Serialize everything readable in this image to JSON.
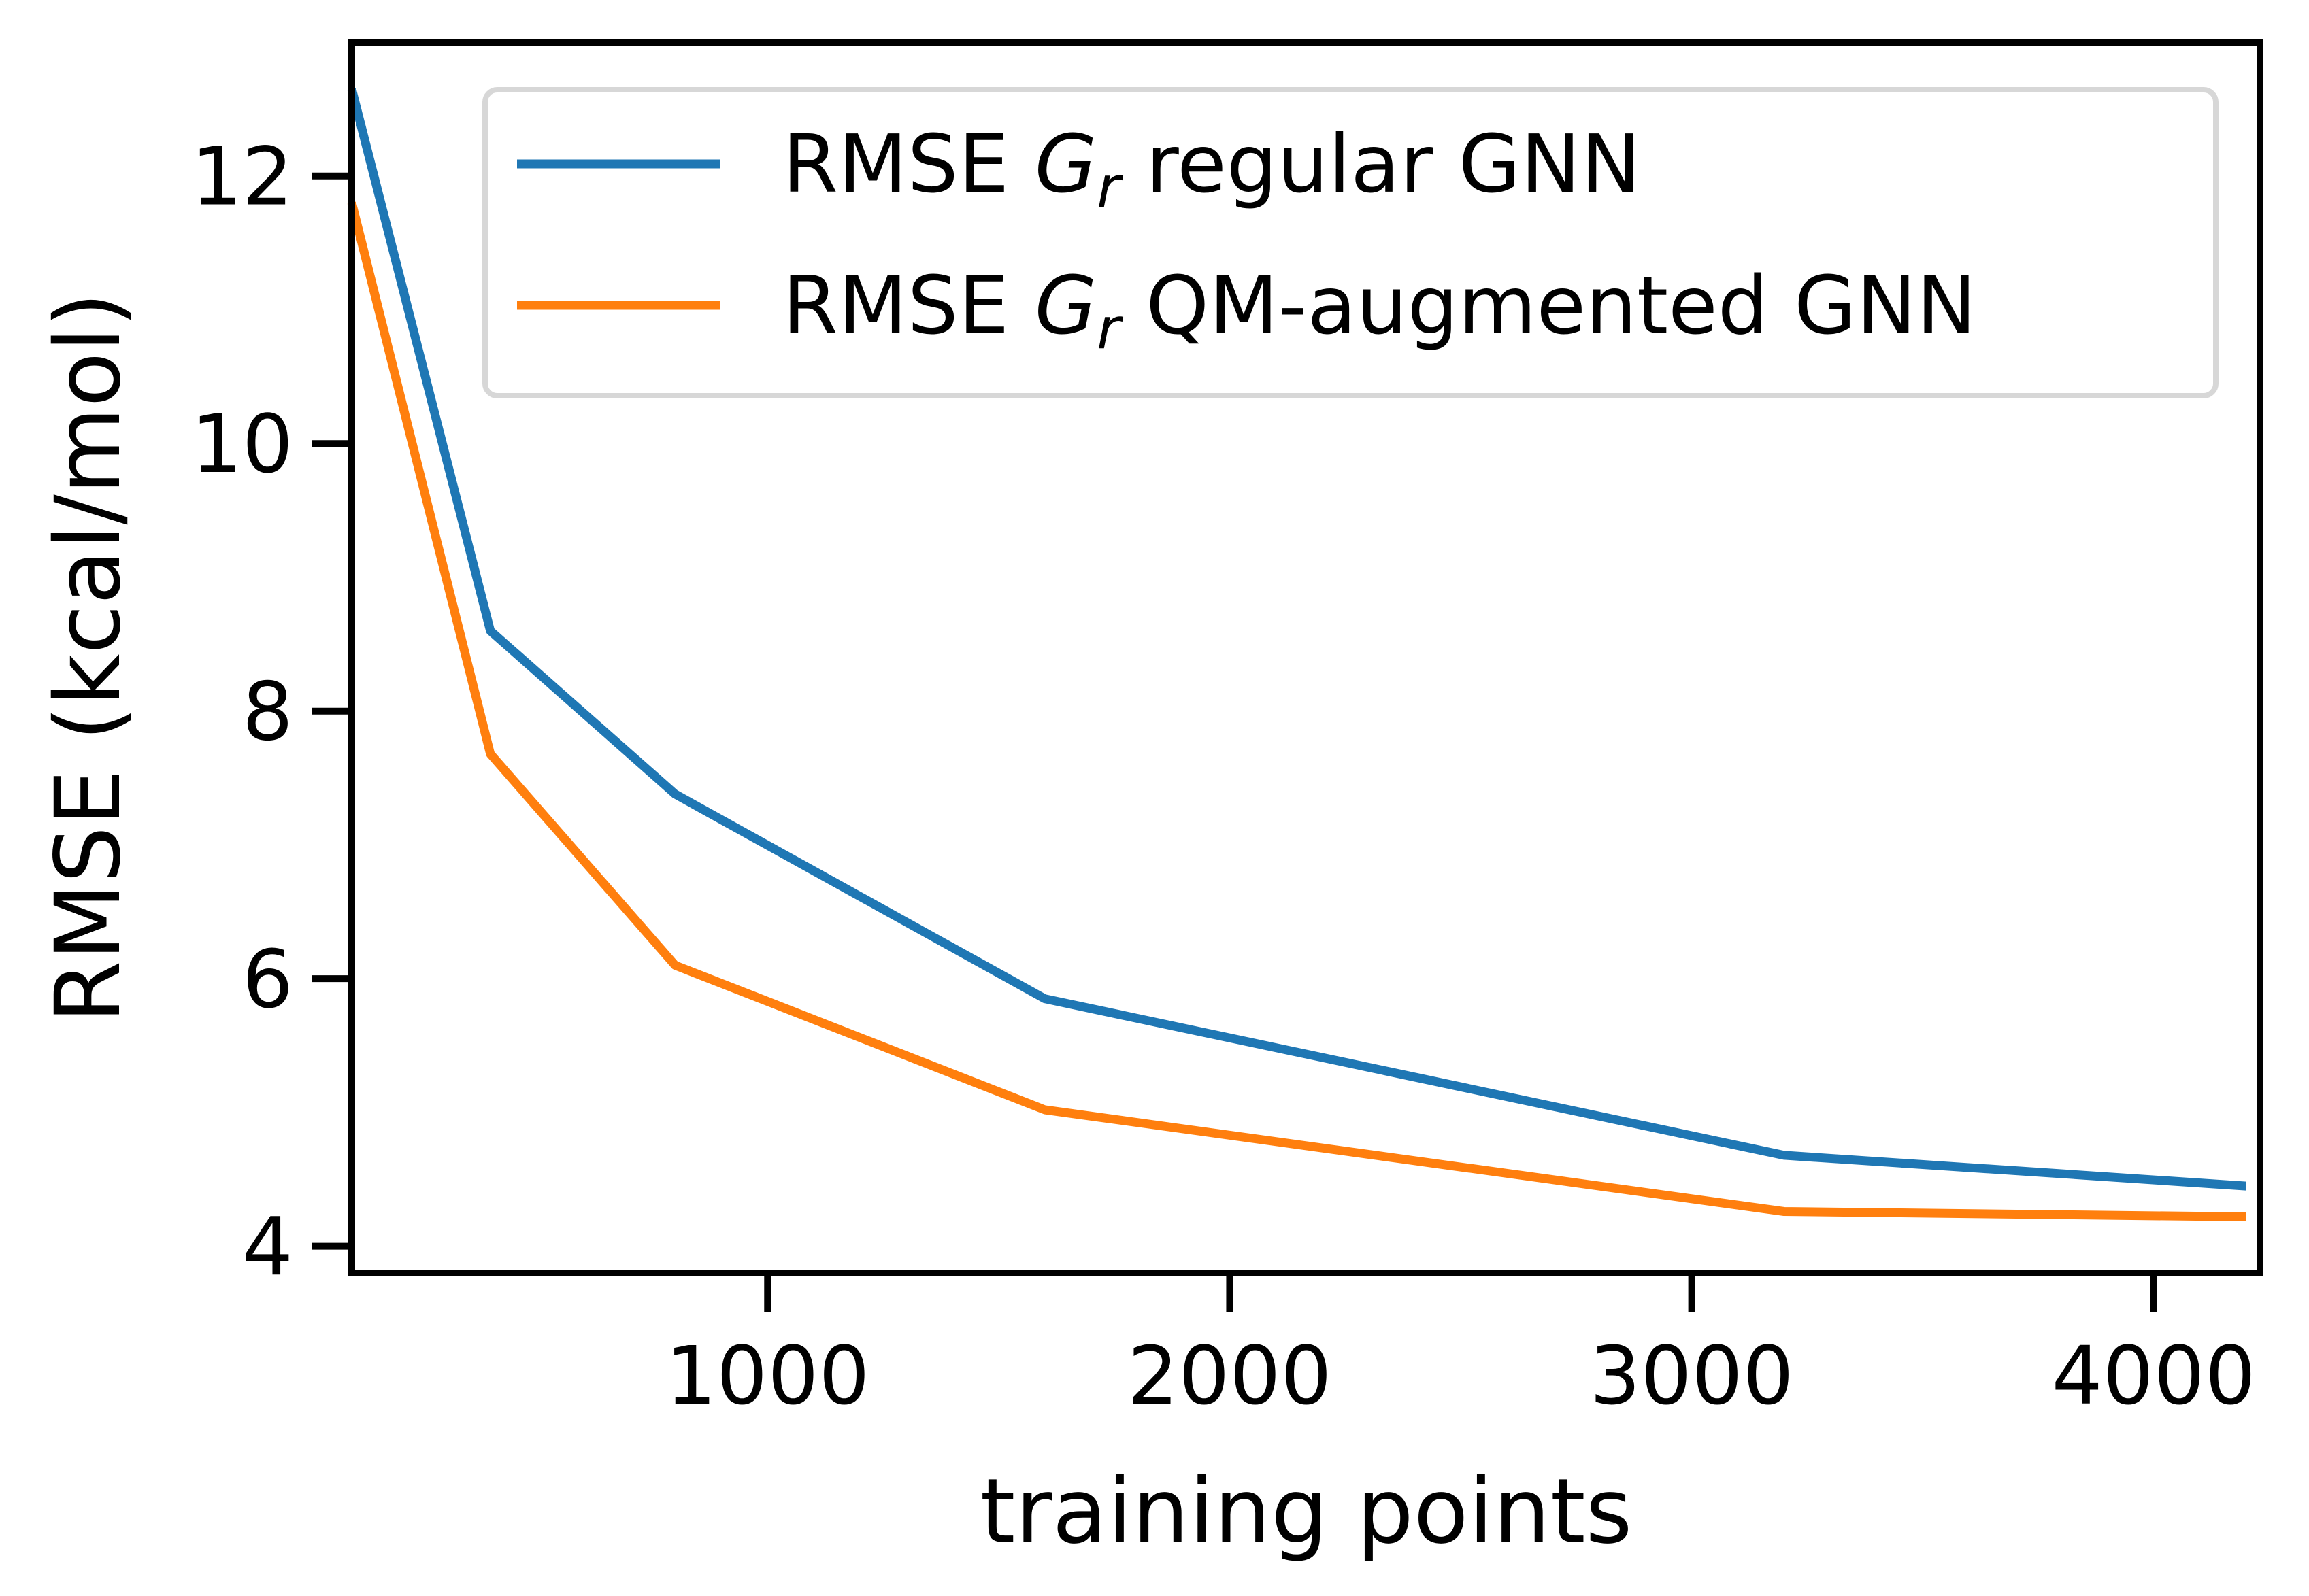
{
  "chart_data": {
    "type": "line",
    "x": [
      100,
      400,
      800,
      1600,
      3200,
      4200
    ],
    "series": [
      {
        "name_parts": [
          "RMSE ",
          "G",
          "r",
          " regular GNN"
        ],
        "values": [
          12.65,
          8.6,
          7.38,
          5.85,
          4.68,
          4.45
        ],
        "color": "#1f77b4"
      },
      {
        "name_parts": [
          "RMSE ",
          "G",
          "r",
          " QM-augmented GNN"
        ],
        "values": [
          11.8,
          7.68,
          6.1,
          5.02,
          4.26,
          4.22
        ],
        "color": "#ff7f0e"
      }
    ],
    "xlabel": "training points",
    "ylabel": "RMSE (kcal/mol)",
    "xlim": [
      100,
      4230
    ],
    "ylim": [
      3.8,
      13.0
    ],
    "xticks": [
      1000,
      2000,
      3000,
      4000
    ],
    "yticks": [
      4,
      6,
      8,
      10,
      12
    ],
    "xtick_labels": [
      "1000",
      "2000",
      "3000",
      "4000"
    ],
    "ytick_labels": [
      "4",
      "6",
      "8",
      "10",
      "12"
    ],
    "legend": "top-right",
    "grid": false
  }
}
